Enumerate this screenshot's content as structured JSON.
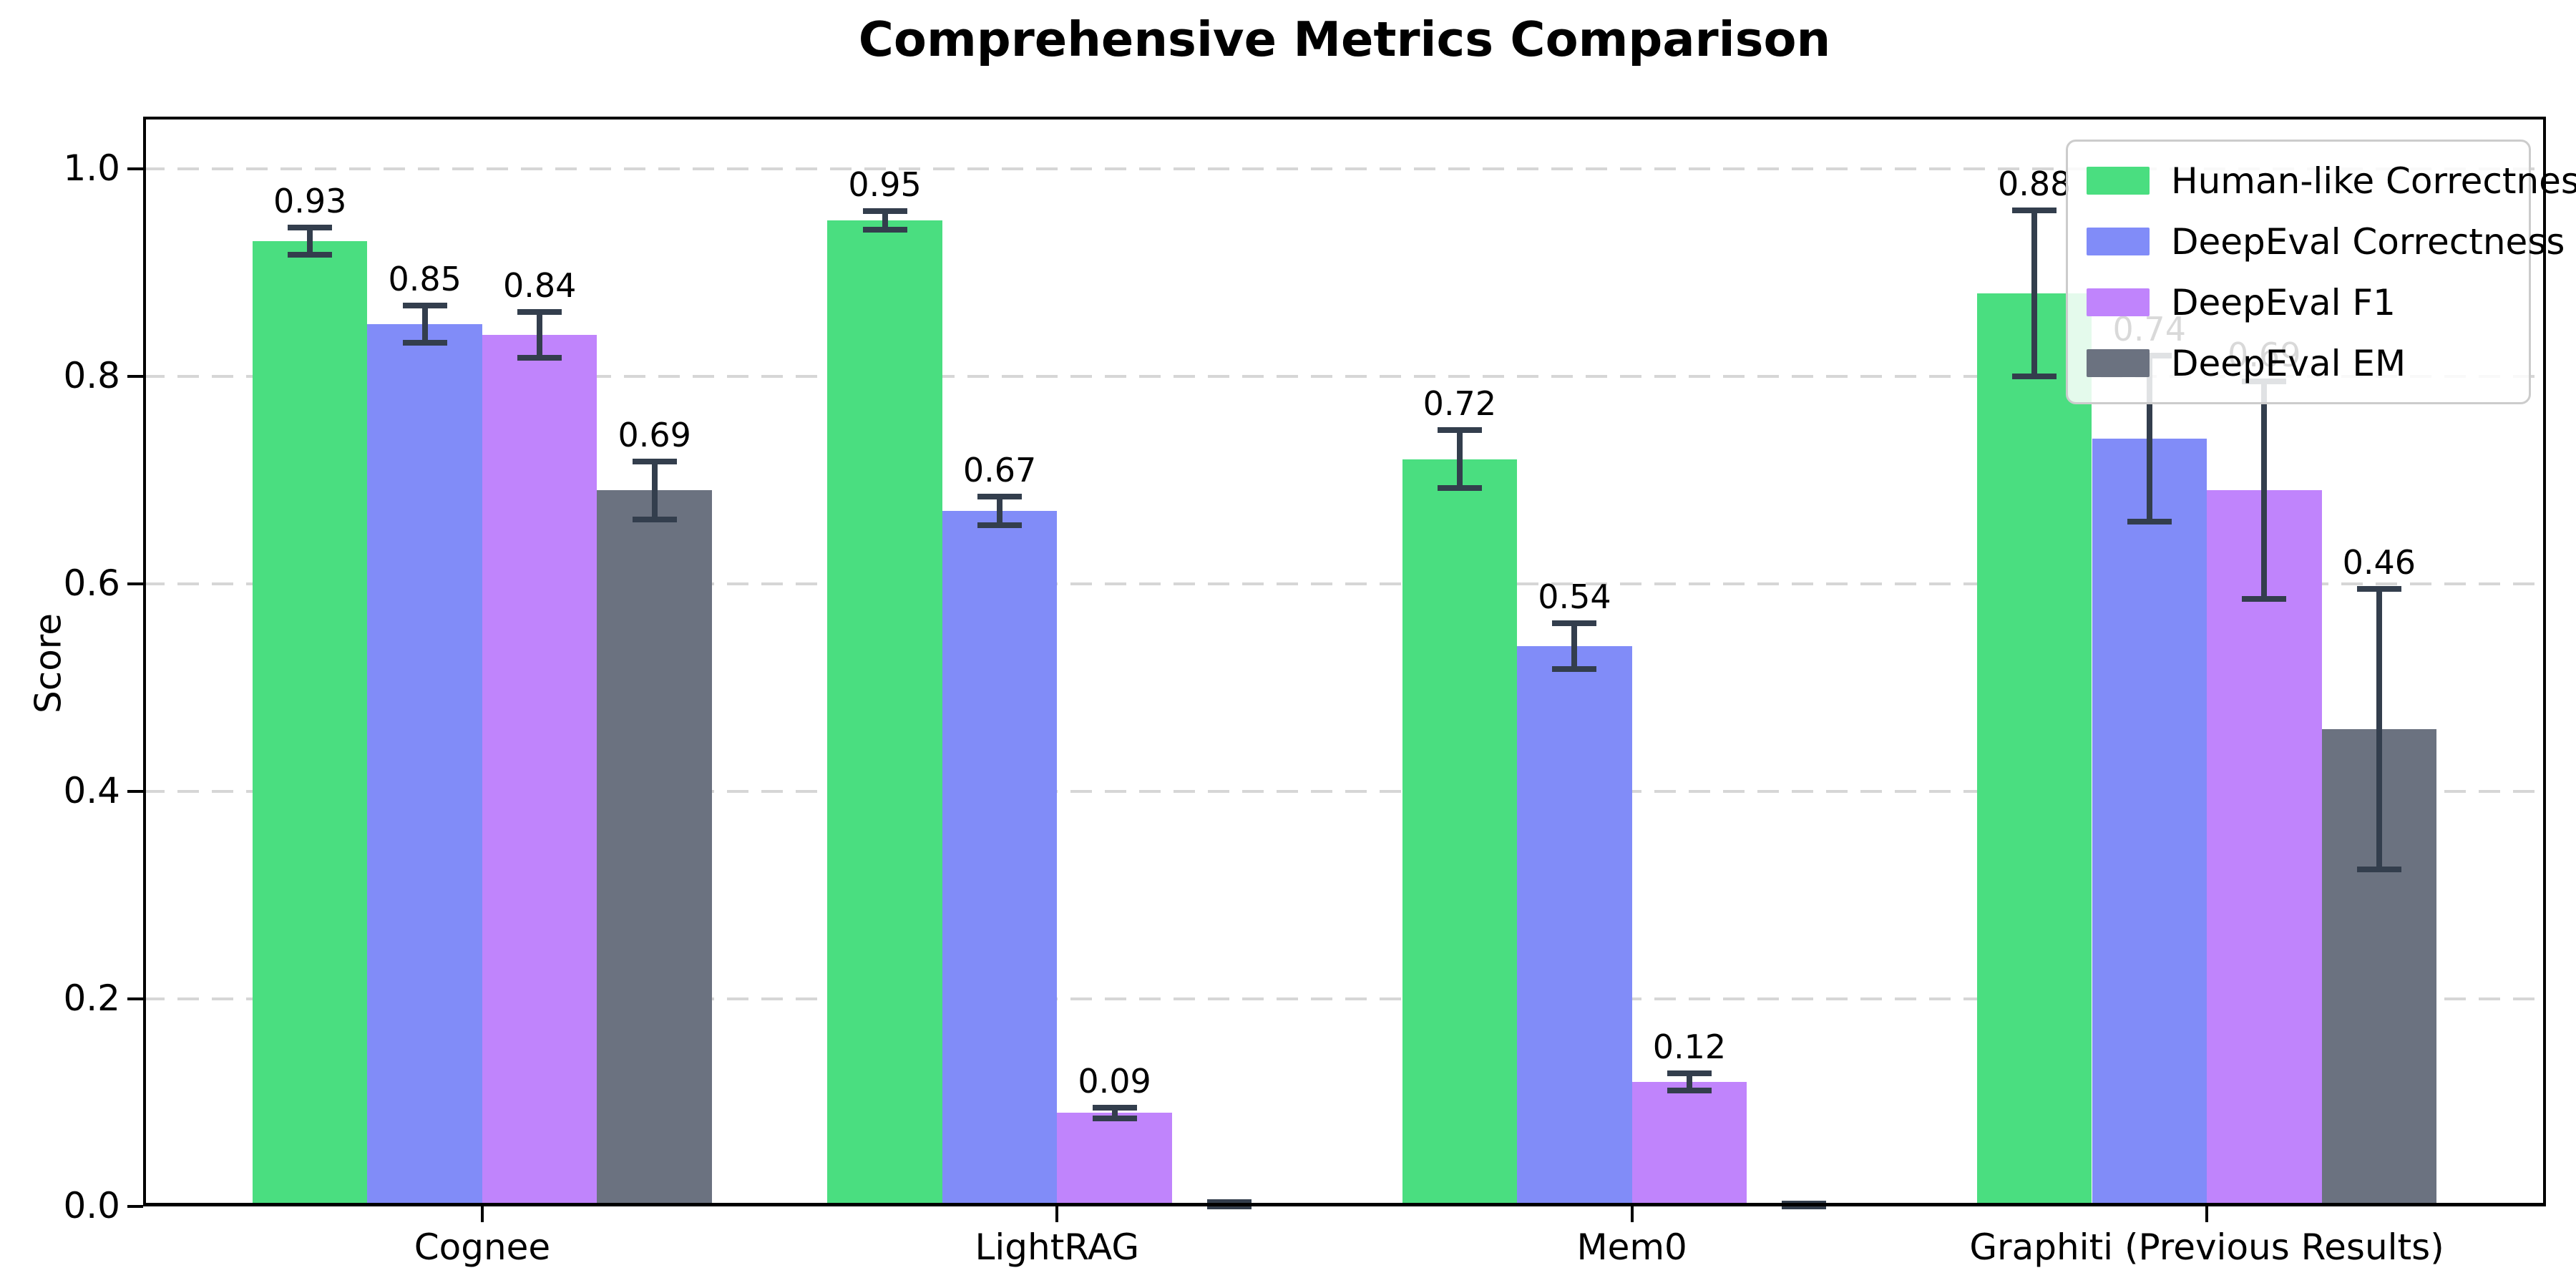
{
  "figure": {
    "title": "Comprehensive Metrics Comparison",
    "background": "#ffffff"
  },
  "chart_data": {
    "type": "bar",
    "title": "Comprehensive Metrics Comparison",
    "xlabel": "",
    "ylabel": "Score",
    "ylim": [
      0,
      1.05
    ],
    "yticks": [
      0.0,
      0.2,
      0.4,
      0.6,
      0.8,
      1.0
    ],
    "ytick_labels": [
      "0.0",
      "0.2",
      "0.4",
      "0.6",
      "0.8",
      "1.0"
    ],
    "grid": "horizontal-dashed",
    "grid_color": "#d6d6d6",
    "error_color": "#333e4d",
    "legend_position": "upper-right",
    "categories": [
      "Cognee",
      "LightRAG",
      "Mem0",
      "Graphiti (Previous Results)"
    ],
    "series": [
      {
        "name": "Human-like Correctness",
        "color": "#4ade80",
        "values": [
          0.93,
          0.95,
          0.72,
          0.88
        ],
        "errors": [
          0.013,
          0.009,
          0.028,
          0.08
        ],
        "labels": [
          "0.93",
          "0.95",
          "0.72",
          "0.88"
        ]
      },
      {
        "name": "DeepEval Correctness",
        "color": "#818cf8",
        "values": [
          0.85,
          0.67,
          0.54,
          0.74
        ],
        "errors": [
          0.018,
          0.014,
          0.022,
          0.08
        ],
        "labels": [
          "0.85",
          "0.67",
          "0.54",
          "0.74"
        ]
      },
      {
        "name": "DeepEval F1",
        "color": "#c084fc",
        "values": [
          0.84,
          0.09,
          0.12,
          0.69
        ],
        "errors": [
          0.022,
          0.005,
          0.008,
          0.105
        ],
        "labels": [
          "0.84",
          "0.09",
          "0.12",
          "0.69"
        ]
      },
      {
        "name": "DeepEval EM",
        "color": "#6b7280",
        "values": [
          0.69,
          0.0,
          0.0,
          0.46
        ],
        "errors": [
          0.028,
          0.004,
          0.003,
          0.135
        ],
        "labels": [
          "0.69",
          "",
          "",
          "0.46"
        ]
      }
    ]
  }
}
